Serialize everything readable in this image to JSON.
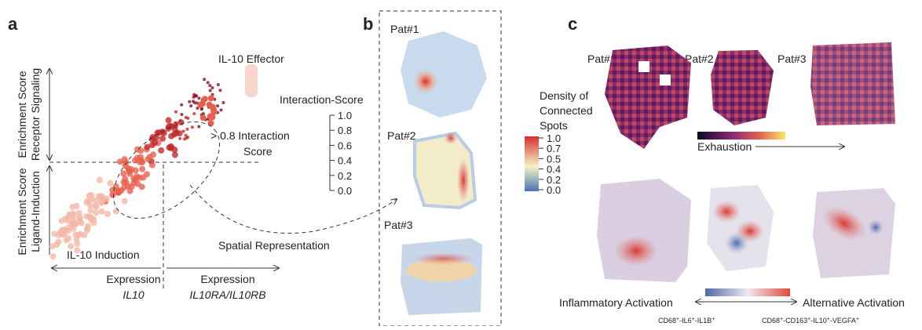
{
  "panel_a": {
    "label": "a",
    "effector": "IL-10 Effector",
    "upper_axis": [
      "Enrichment Score",
      "Receptor Signaling"
    ],
    "lower_axis": [
      "Enrichment Score",
      "Ligand-Induction"
    ],
    "threshold": [
      "> 0.8 Interaction",
      "Score"
    ],
    "induction": "IL-10 Induction",
    "x_left": [
      "Expression",
      "IL10"
    ],
    "x_right": [
      "Expression",
      "IL10RA/IL10RB"
    ],
    "scale_title": "Interaction-Score",
    "scale_ticks": [
      "1.0",
      "0.8",
      "0.6",
      "0.4",
      "0.2",
      "0.0"
    ],
    "spatial": "Spatial Representation"
  },
  "panel_b": {
    "label": "b",
    "patients": [
      "Pat#1",
      "Pat#2",
      "Pat#3"
    ],
    "scale_title": [
      "Density of",
      "Connected",
      "Spots"
    ],
    "scale_ticks": [
      "1.0",
      "0.7",
      "0.5",
      "0.4",
      "0.2",
      "0.0"
    ]
  },
  "panel_c": {
    "label": "c",
    "patients": [
      "Pat#1",
      "Pat#2",
      "Pat#3"
    ],
    "exhaustion": "Exhaustion",
    "left": "Inflammatory Activation",
    "right": "Alternative Activation",
    "left_markers": [
      "CD68",
      "+",
      "-IL6",
      "+",
      "-IL1B",
      "+"
    ],
    "right_markers": [
      "CD68",
      "+",
      "-CD163",
      "+",
      "-IL10",
      "+",
      "-VEGFA",
      "+"
    ]
  }
}
